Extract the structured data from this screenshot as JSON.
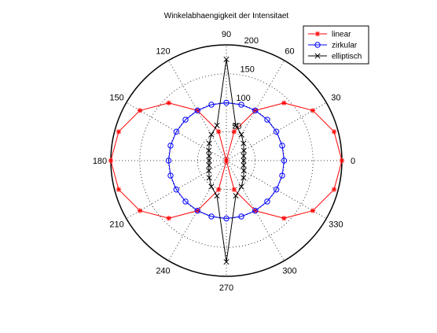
{
  "chart_data": {
    "type": "polar",
    "title": "Winkelabhaengigkeit der Intensitaet",
    "rmax": 200,
    "radial_ticks": [
      50,
      100,
      150,
      200
    ],
    "angle_ticks": [
      0,
      30,
      60,
      90,
      120,
      150,
      180,
      210,
      240,
      270,
      300,
      330
    ],
    "grid": true,
    "legend_placement": "top-right",
    "series": [
      {
        "name": "linear",
        "color": "#ff0000",
        "marker": "asterisk",
        "theta_deg": [
          0,
          15,
          30,
          45,
          60,
          75,
          90,
          105,
          120,
          135,
          150,
          165,
          180,
          195,
          210,
          225,
          240,
          255,
          270,
          285,
          300,
          315,
          330,
          345,
          360
        ],
        "r": [
          200,
          193,
          173,
          141,
          100,
          52,
          0,
          52,
          100,
          141,
          173,
          193,
          200,
          193,
          173,
          141,
          100,
          52,
          0,
          52,
          100,
          141,
          173,
          193,
          200
        ]
      },
      {
        "name": "zirkular",
        "color": "#0000ff",
        "marker": "circle",
        "theta_deg": [
          0,
          15,
          30,
          45,
          60,
          75,
          90,
          105,
          120,
          135,
          150,
          165,
          180,
          195,
          210,
          225,
          240,
          255,
          270,
          285,
          300,
          315,
          330,
          345,
          360
        ],
        "r": [
          100,
          100,
          100,
          100,
          100,
          100,
          100,
          100,
          100,
          100,
          100,
          100,
          100,
          100,
          100,
          100,
          100,
          100,
          100,
          100,
          100,
          100,
          100,
          100,
          100
        ]
      },
      {
        "name": "elliptisch",
        "color": "#000000",
        "marker": "x",
        "theta_deg": [
          0,
          15,
          30,
          45,
          60,
          75,
          90,
          105,
          120,
          135,
          150,
          165,
          180,
          195,
          210,
          225,
          240,
          255,
          270,
          285,
          300,
          315,
          330,
          345,
          360
        ],
        "r": [
          30,
          31,
          35,
          42,
          52,
          63,
          175,
          63,
          52,
          42,
          35,
          31,
          30,
          31,
          35,
          42,
          52,
          63,
          175,
          63,
          52,
          42,
          35,
          31,
          30
        ]
      }
    ]
  }
}
